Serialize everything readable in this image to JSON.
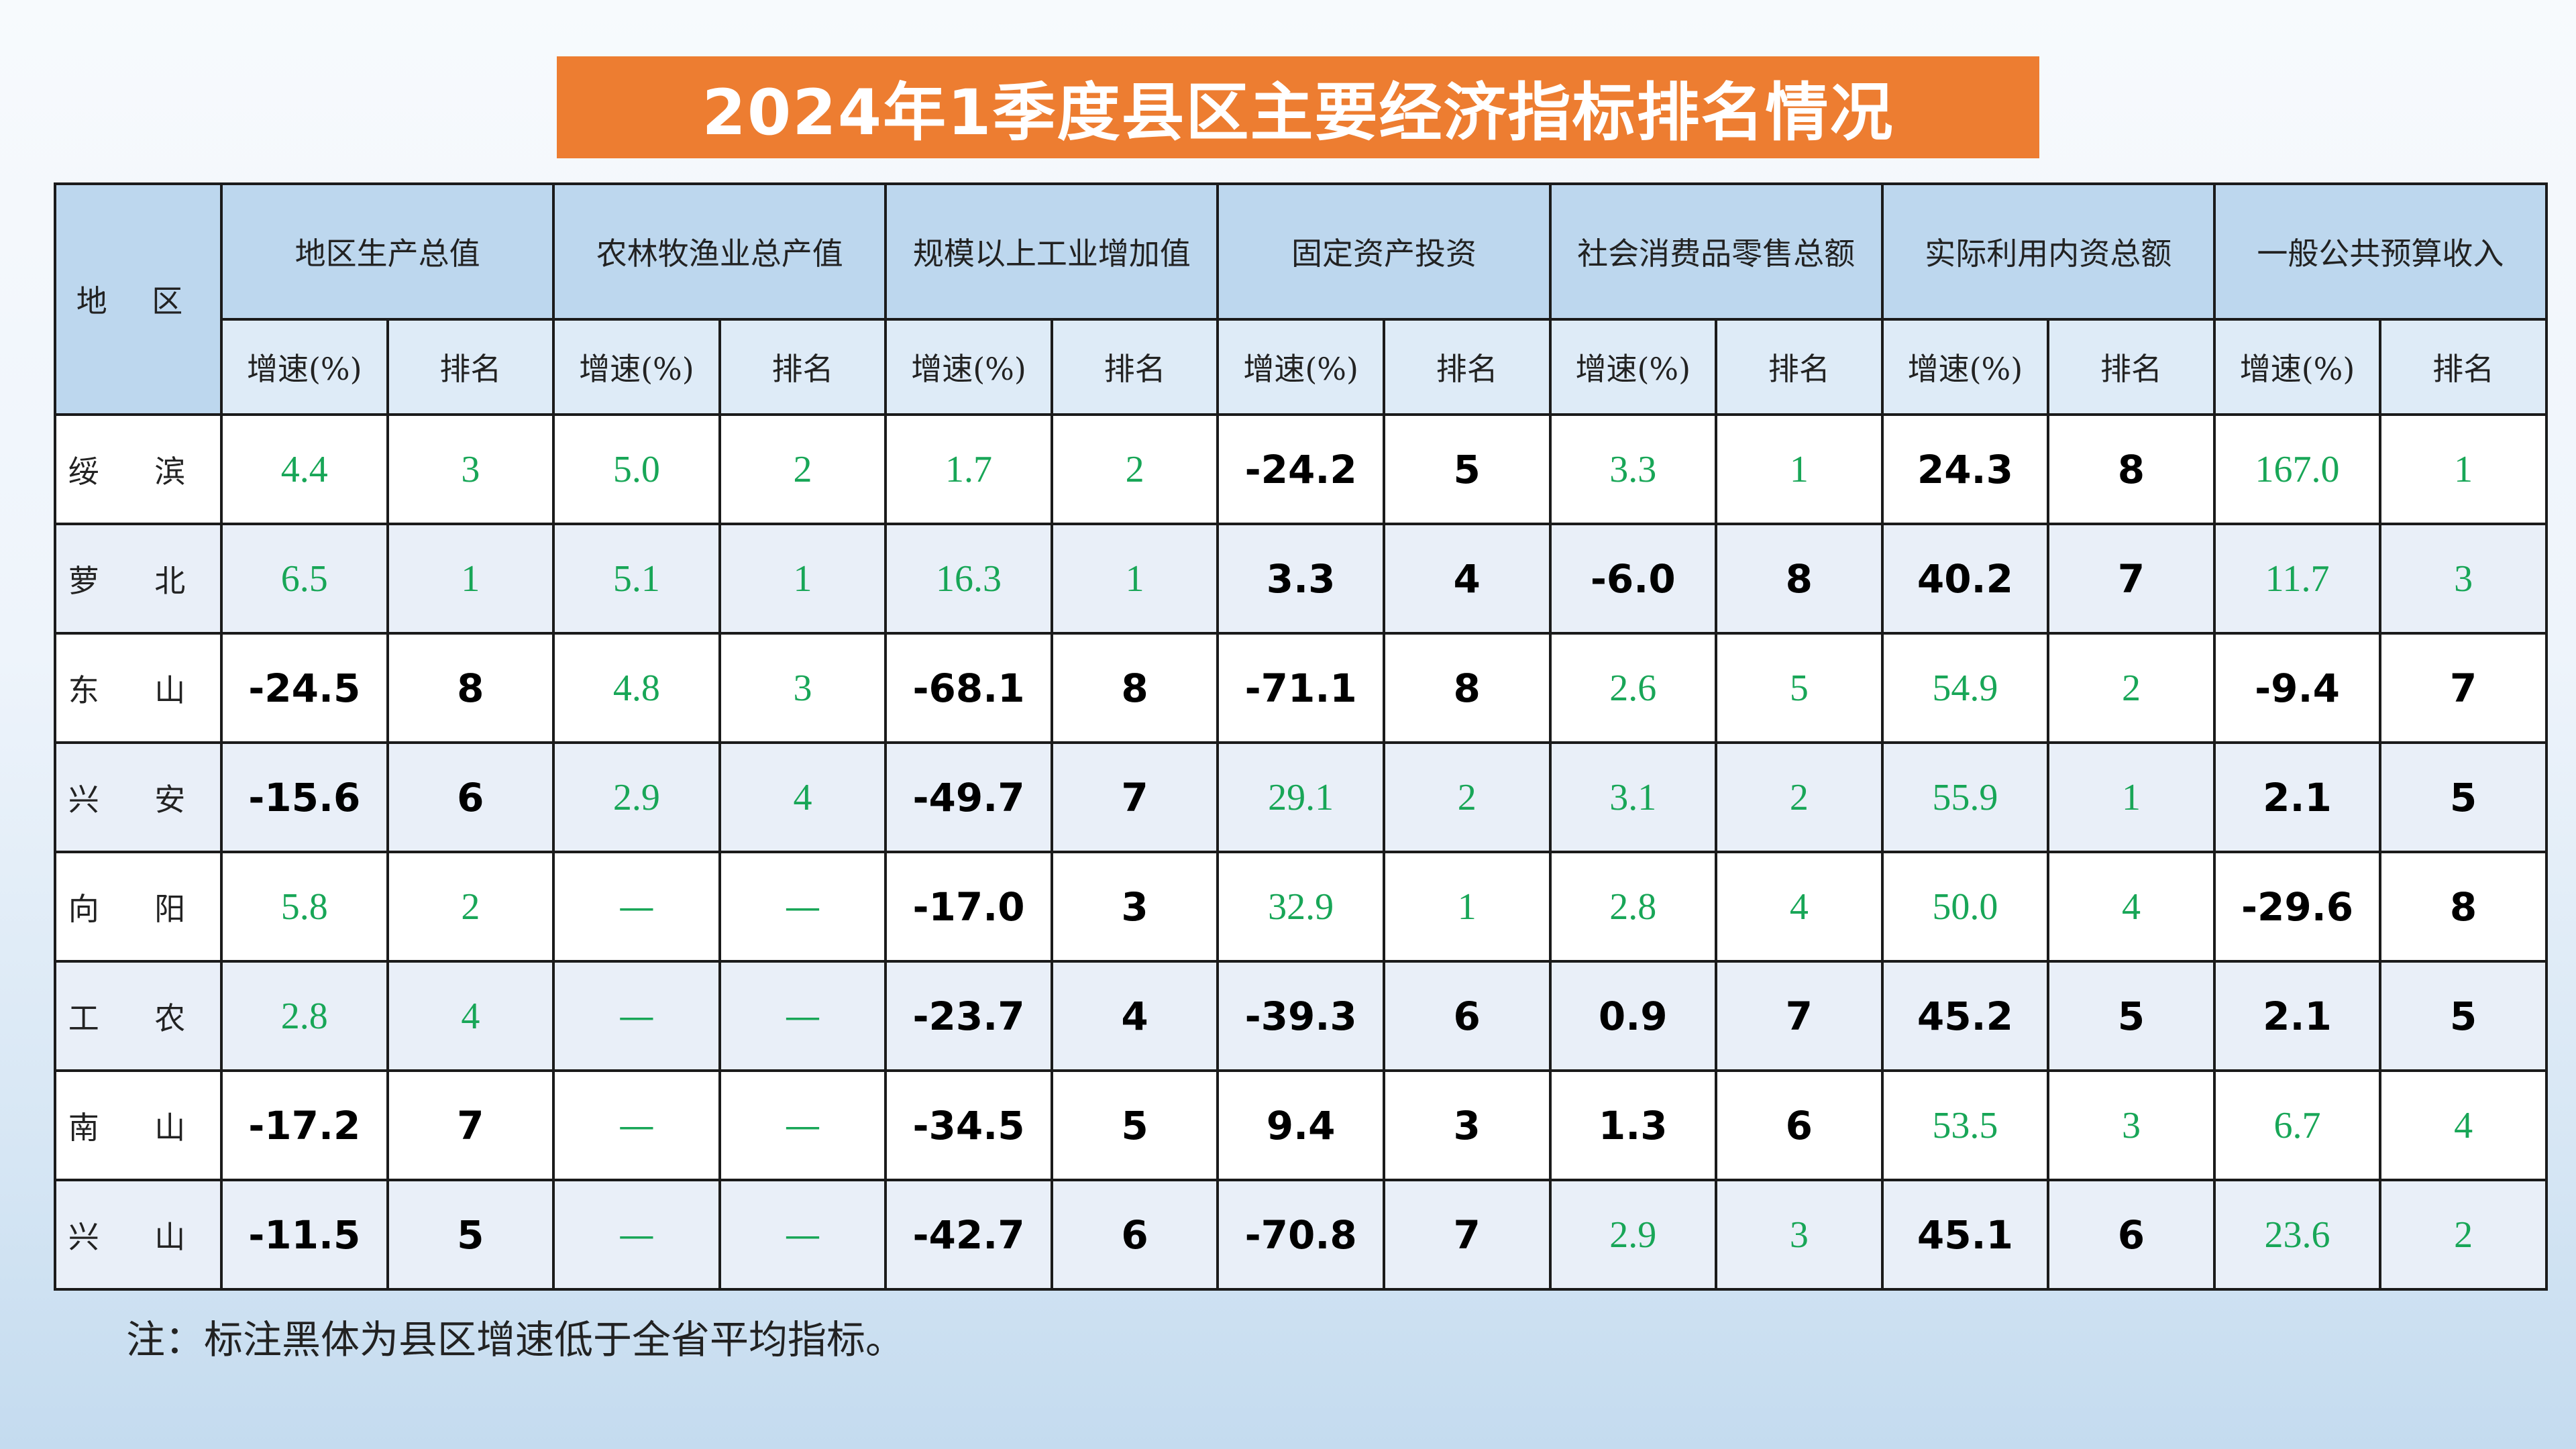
{
  "title": "2024年1季度县区主要经济指标排名情况",
  "header": {
    "region": "地 区",
    "indicators": [
      "地区生产总值",
      "农林牧渔业总产值",
      "规模以上工业增加值",
      "固定资产投资",
      "社会消费品零售总额",
      "实际利用内资总额",
      "一般公共预算收入"
    ],
    "growth": "增速(%)",
    "rank": "排名"
  },
  "rows": [
    {
      "name": "绥 滨",
      "cells": [
        {
          "v": "4.4",
          "s": "g"
        },
        {
          "v": "3",
          "s": "g"
        },
        {
          "v": "5.0",
          "s": "g"
        },
        {
          "v": "2",
          "s": "g"
        },
        {
          "v": "1.7",
          "s": "g"
        },
        {
          "v": "2",
          "s": "g"
        },
        {
          "v": "-24.2",
          "s": "b"
        },
        {
          "v": "5",
          "s": "b"
        },
        {
          "v": "3.3",
          "s": "g"
        },
        {
          "v": "1",
          "s": "g"
        },
        {
          "v": "24.3",
          "s": "b"
        },
        {
          "v": "8",
          "s": "b"
        },
        {
          "v": "167.0",
          "s": "g"
        },
        {
          "v": "1",
          "s": "g"
        }
      ]
    },
    {
      "name": "萝 北",
      "cells": [
        {
          "v": "6.5",
          "s": "g"
        },
        {
          "v": "1",
          "s": "g"
        },
        {
          "v": "5.1",
          "s": "g"
        },
        {
          "v": "1",
          "s": "g"
        },
        {
          "v": "16.3",
          "s": "g"
        },
        {
          "v": "1",
          "s": "g"
        },
        {
          "v": "3.3",
          "s": "b"
        },
        {
          "v": "4",
          "s": "b"
        },
        {
          "v": "-6.0",
          "s": "b"
        },
        {
          "v": "8",
          "s": "b"
        },
        {
          "v": "40.2",
          "s": "b"
        },
        {
          "v": "7",
          "s": "b"
        },
        {
          "v": "11.7",
          "s": "g"
        },
        {
          "v": "3",
          "s": "g"
        }
      ]
    },
    {
      "name": "东 山",
      "cells": [
        {
          "v": "-24.5",
          "s": "b"
        },
        {
          "v": "8",
          "s": "b"
        },
        {
          "v": "4.8",
          "s": "g"
        },
        {
          "v": "3",
          "s": "g"
        },
        {
          "v": "-68.1",
          "s": "b"
        },
        {
          "v": "8",
          "s": "b"
        },
        {
          "v": "-71.1",
          "s": "b"
        },
        {
          "v": "8",
          "s": "b"
        },
        {
          "v": "2.6",
          "s": "g"
        },
        {
          "v": "5",
          "s": "g"
        },
        {
          "v": "54.9",
          "s": "g"
        },
        {
          "v": "2",
          "s": "g"
        },
        {
          "v": "-9.4",
          "s": "b"
        },
        {
          "v": "7",
          "s": "b"
        }
      ]
    },
    {
      "name": "兴 安",
      "cells": [
        {
          "v": "-15.6",
          "s": "b"
        },
        {
          "v": "6",
          "s": "b"
        },
        {
          "v": "2.9",
          "s": "g"
        },
        {
          "v": "4",
          "s": "g"
        },
        {
          "v": "-49.7",
          "s": "b"
        },
        {
          "v": "7",
          "s": "b"
        },
        {
          "v": "29.1",
          "s": "g"
        },
        {
          "v": "2",
          "s": "g"
        },
        {
          "v": "3.1",
          "s": "g"
        },
        {
          "v": "2",
          "s": "g"
        },
        {
          "v": "55.9",
          "s": "g"
        },
        {
          "v": "1",
          "s": "g"
        },
        {
          "v": "2.1",
          "s": "b"
        },
        {
          "v": "5",
          "s": "b"
        }
      ]
    },
    {
      "name": "向 阳",
      "cells": [
        {
          "v": "5.8",
          "s": "g"
        },
        {
          "v": "2",
          "s": "g"
        },
        {
          "v": "—",
          "s": "d"
        },
        {
          "v": "—",
          "s": "d"
        },
        {
          "v": "-17.0",
          "s": "b"
        },
        {
          "v": "3",
          "s": "b"
        },
        {
          "v": "32.9",
          "s": "g"
        },
        {
          "v": "1",
          "s": "g"
        },
        {
          "v": "2.8",
          "s": "g"
        },
        {
          "v": "4",
          "s": "g"
        },
        {
          "v": "50.0",
          "s": "g"
        },
        {
          "v": "4",
          "s": "g"
        },
        {
          "v": "-29.6",
          "s": "b"
        },
        {
          "v": "8",
          "s": "b"
        }
      ]
    },
    {
      "name": "工 农",
      "cells": [
        {
          "v": "2.8",
          "s": "g"
        },
        {
          "v": "4",
          "s": "g"
        },
        {
          "v": "—",
          "s": "d"
        },
        {
          "v": "—",
          "s": "d"
        },
        {
          "v": "-23.7",
          "s": "b"
        },
        {
          "v": "4",
          "s": "b"
        },
        {
          "v": "-39.3",
          "s": "b"
        },
        {
          "v": "6",
          "s": "b"
        },
        {
          "v": "0.9",
          "s": "b"
        },
        {
          "v": "7",
          "s": "b"
        },
        {
          "v": "45.2",
          "s": "b"
        },
        {
          "v": "5",
          "s": "b"
        },
        {
          "v": "2.1",
          "s": "b"
        },
        {
          "v": "5",
          "s": "b"
        }
      ]
    },
    {
      "name": "南 山",
      "cells": [
        {
          "v": "-17.2",
          "s": "b"
        },
        {
          "v": "7",
          "s": "b"
        },
        {
          "v": "—",
          "s": "d"
        },
        {
          "v": "—",
          "s": "d"
        },
        {
          "v": "-34.5",
          "s": "b"
        },
        {
          "v": "5",
          "s": "b"
        },
        {
          "v": "9.4",
          "s": "b"
        },
        {
          "v": "3",
          "s": "b"
        },
        {
          "v": "1.3",
          "s": "b"
        },
        {
          "v": "6",
          "s": "b"
        },
        {
          "v": "53.5",
          "s": "g"
        },
        {
          "v": "3",
          "s": "g"
        },
        {
          "v": "6.7",
          "s": "g"
        },
        {
          "v": "4",
          "s": "g"
        }
      ]
    },
    {
      "name": "兴 山",
      "cells": [
        {
          "v": "-11.5",
          "s": "b"
        },
        {
          "v": "5",
          "s": "b"
        },
        {
          "v": "—",
          "s": "d"
        },
        {
          "v": "—",
          "s": "d"
        },
        {
          "v": "-42.7",
          "s": "b"
        },
        {
          "v": "6",
          "s": "b"
        },
        {
          "v": "-70.8",
          "s": "b"
        },
        {
          "v": "7",
          "s": "b"
        },
        {
          "v": "2.9",
          "s": "g"
        },
        {
          "v": "3",
          "s": "g"
        },
        {
          "v": "45.1",
          "s": "b"
        },
        {
          "v": "6",
          "s": "b"
        },
        {
          "v": "23.6",
          "s": "g"
        },
        {
          "v": "2",
          "s": "g"
        }
      ]
    }
  ],
  "colors": {
    "title_bg": "#ed7d31",
    "header_bg": "#bdd7ee",
    "good_value": "#18a657",
    "below_average_value": "#000000"
  },
  "note": "注：标注黑体为县区增速低于全省平均指标。"
}
